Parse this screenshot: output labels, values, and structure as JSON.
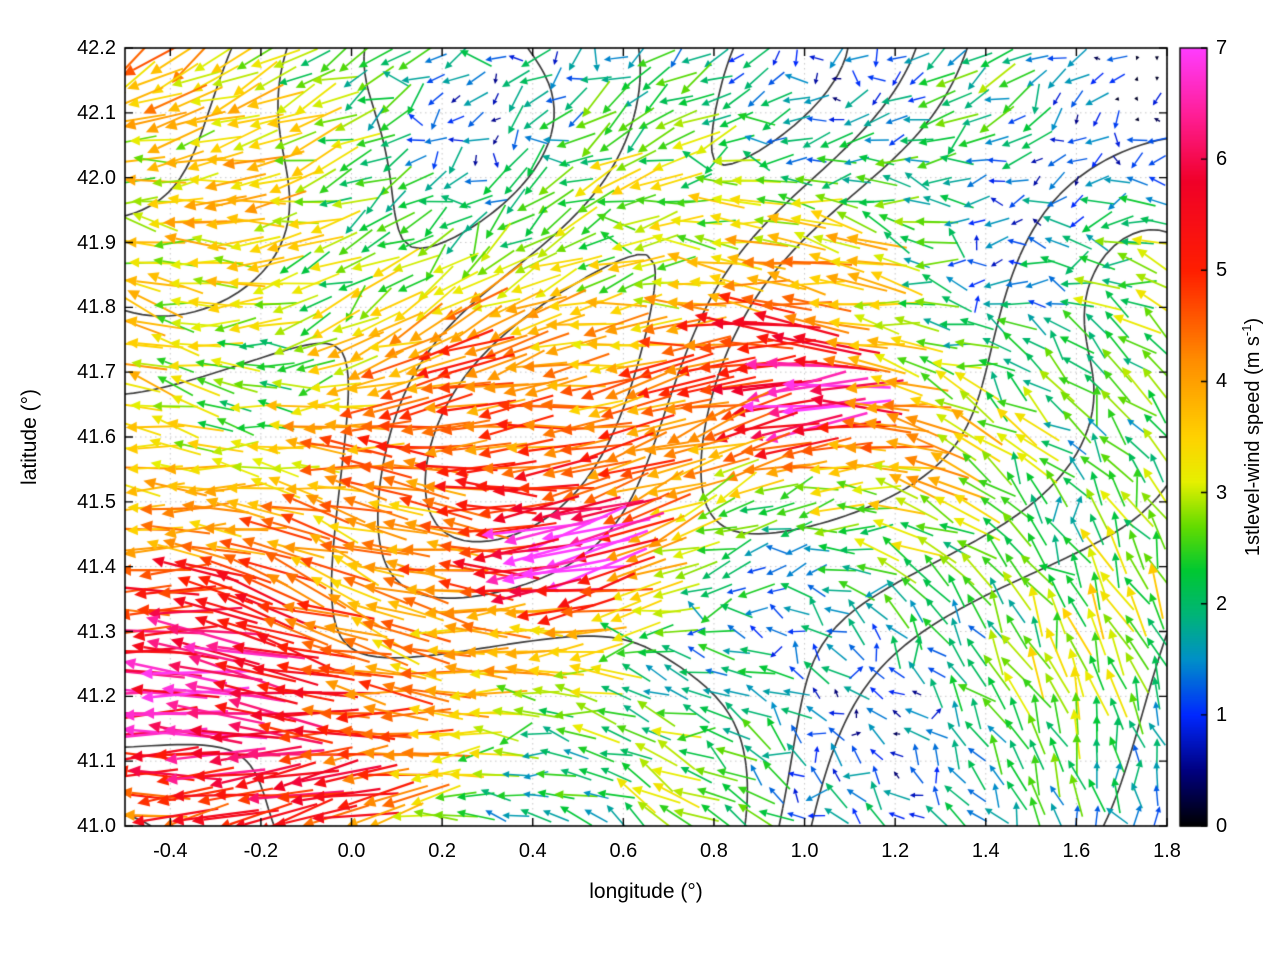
{
  "chart_data": {
    "type": "quiver",
    "subtype": "wind vector map with terrain contour overlay",
    "title": "",
    "xlabel": "longitude (°)",
    "ylabel": "latitude (°)",
    "xlim": [
      -0.5,
      1.8
    ],
    "ylim": [
      41.0,
      42.2
    ],
    "grid": true,
    "xticks": {
      "values": [
        -0.4,
        -0.2,
        0.0,
        0.2,
        0.4,
        0.6,
        0.8,
        1.0,
        1.2,
        1.4,
        1.6,
        1.8
      ],
      "labels": [
        "-0.4",
        "-0.2",
        "0.0",
        "0.2",
        "0.4",
        "0.6",
        "0.8",
        "1.0",
        "1.2",
        "1.4",
        "1.6",
        "1.8"
      ]
    },
    "yticks": {
      "values": [
        41.0,
        41.1,
        41.2,
        41.3,
        41.4,
        41.5,
        41.6,
        41.7,
        41.8,
        41.9,
        42.0,
        42.1,
        42.2
      ],
      "labels": [
        "41.0",
        "41.1",
        "41.2",
        "41.3",
        "41.4",
        "41.5",
        "41.6",
        "41.7",
        "41.8",
        "41.9",
        "42.0",
        "42.1",
        "42.2"
      ]
    },
    "colorbar": {
      "label_prefix": "1stlevel-wind speed (m s",
      "label_sup": "-1",
      "label_suffix": ")",
      "min": 0,
      "max": 7,
      "ticks": {
        "values": [
          0,
          1,
          2,
          3,
          4,
          5,
          6,
          7
        ],
        "labels": [
          "0",
          "1",
          "2",
          "3",
          "4",
          "5",
          "6",
          "7"
        ]
      },
      "colormap_stops": [
        [
          0.0,
          "#000000"
        ],
        [
          0.5,
          "#000080"
        ],
        [
          1.0,
          "#0028ff"
        ],
        [
          1.5,
          "#0090c8"
        ],
        [
          1.9,
          "#00b478"
        ],
        [
          2.3,
          "#00c832"
        ],
        [
          2.7,
          "#64dc00"
        ],
        [
          3.1,
          "#e6f000"
        ],
        [
          3.5,
          "#ffd200"
        ],
        [
          4.2,
          "#ff8c00"
        ],
        [
          5.0,
          "#ff1e00"
        ],
        [
          5.8,
          "#f00028"
        ],
        [
          6.4,
          "#ff1e96"
        ],
        [
          7.0,
          "#ff3cff"
        ]
      ]
    },
    "contour_color": "#3d3d3d",
    "grid_color": "#c8c8c8",
    "vector_field": {
      "description": "Arrows on a regular grid show first-level wind vectors coloured by speed (0-7 m/s rainbow palette). Strong westward flow (orange-red, 4-6 m/s) dominates the west/southwest and the centre of the map; weak variable winds (blue-green, under 2 m/s) occupy the northeast and southeast; isolated magenta vectors above 6.5 m/s appear near (1.0°, 41.65°) and (0.5°, 41.42°). Dark grey terrain contour lines overlay the whole map.",
      "sample_grid": {
        "cols": 52,
        "rows": 38
      },
      "speed_grid_mps_rows_top_to_bottom": [
        [
          3.2,
          3.0,
          2.6,
          2.3,
          2.0,
          1.8,
          1.5,
          1.2,
          1.0,
          1.4,
          1.2,
          0.8
        ],
        [
          3.3,
          3.1,
          2.8,
          2.5,
          2.2,
          2.0,
          1.8,
          1.5,
          1.7,
          1.9,
          1.4,
          1.0
        ],
        [
          3.6,
          3.3,
          3.0,
          3.0,
          2.8,
          2.5,
          2.6,
          3.0,
          3.1,
          2.4,
          2.0,
          2.1
        ],
        [
          3.8,
          3.5,
          3.3,
          3.5,
          3.9,
          4.0,
          4.2,
          4.4,
          4.1,
          3.0,
          2.5,
          2.7
        ],
        [
          4.0,
          4.2,
          3.8,
          3.6,
          4.0,
          4.2,
          4.5,
          4.9,
          4.4,
          3.4,
          2.5,
          2.4
        ],
        [
          4.6,
          4.3,
          4.0,
          3.8,
          4.5,
          4.7,
          3.9,
          3.0,
          2.5,
          2.2,
          2.5,
          2.7
        ],
        [
          5.1,
          5.2,
          4.6,
          4.0,
          3.8,
          3.2,
          2.5,
          2.0,
          1.7,
          1.5,
          2.0,
          2.4
        ],
        [
          5.6,
          5.5,
          4.9,
          4.2,
          3.5,
          3.0,
          2.2,
          1.5,
          1.2,
          1.4,
          1.7,
          2.0
        ],
        [
          4.6,
          4.9,
          4.3,
          3.8,
          3.2,
          2.7,
          2.0,
          1.4,
          1.2,
          1.5,
          1.8,
          2.0
        ]
      ],
      "direction_deg_rows_top_to_bottom": [
        [
          195,
          198,
          202,
          206,
          212,
          216,
          222,
          226,
          230,
          222,
          212,
          205
        ],
        [
          188,
          192,
          196,
          201,
          206,
          211,
          215,
          210,
          201,
          196,
          191,
          186
        ],
        [
          182,
          185,
          186,
          190,
          195,
          195,
          190,
          186,
          181,
          176,
          171,
          166
        ],
        [
          180,
          181,
          185,
          186,
          190,
          186,
          181,
          176,
          171,
          166,
          161,
          156
        ],
        [
          178,
          180,
          182,
          184,
          186,
          184,
          180,
          176,
          172,
          168,
          160,
          150
        ],
        [
          178,
          180,
          182,
          185,
          188,
          186,
          182,
          178,
          170,
          152,
          132,
          120
        ],
        [
          178,
          180,
          182,
          185,
          185,
          180,
          170,
          152,
          122,
          102,
          100,
          110
        ],
        [
          178,
          180,
          182,
          183,
          184,
          178,
          168,
          142,
          112,
          96,
          92,
          100
        ],
        [
          180,
          180,
          182,
          184,
          185,
          180,
          170,
          150,
          122,
          102,
          96,
          100
        ]
      ],
      "hotspots": [
        {
          "lon": 1.02,
          "lat": 41.66,
          "amp": 2.6,
          "radius": 0.05
        },
        {
          "lon": 0.5,
          "lat": 41.42,
          "amp": 2.8,
          "radius": 0.045
        }
      ]
    }
  }
}
